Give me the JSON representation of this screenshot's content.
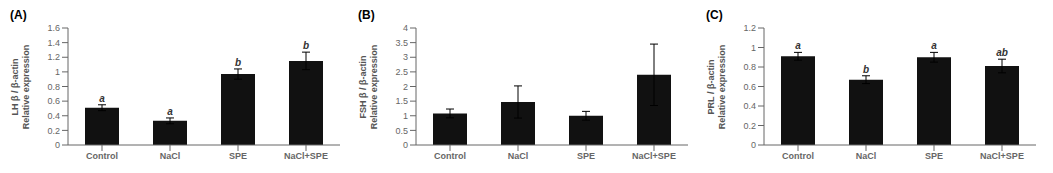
{
  "chart_data": [
    {
      "type": "bar",
      "title": "(A)",
      "ylabel": "LH β / β-actin\nRelative expression",
      "categories": [
        "Control",
        "NaCl",
        "SPE",
        "NaCl+SPE"
      ],
      "values": [
        0.51,
        0.33,
        0.97,
        1.15
      ],
      "errors": [
        0.04,
        0.04,
        0.07,
        0.12
      ],
      "annotations": [
        "a",
        "a",
        "b",
        "b"
      ],
      "ylim": [
        0,
        1.6
      ],
      "yticks": [
        0,
        0.2,
        0.4,
        0.6,
        0.8,
        1,
        1.2,
        1.4,
        1.6
      ],
      "color": "#111111",
      "grid": false
    },
    {
      "type": "bar",
      "title": "(B)",
      "ylabel": "FSH β / β-actin\nRelative expression",
      "categories": [
        "Control",
        "NaCl",
        "SPE",
        "NaCl+SPE"
      ],
      "values": [
        1.08,
        1.47,
        1.0,
        2.4
      ],
      "errors": [
        0.15,
        0.55,
        0.15,
        1.05
      ],
      "ylim": [
        0,
        4
      ],
      "yticks": [
        0,
        0.5,
        1,
        1.5,
        2,
        2.5,
        3,
        3.5,
        4
      ],
      "color": "#111111",
      "grid": false
    },
    {
      "type": "bar",
      "title": "(C)",
      "ylabel": "PRL / β-actin\nRelative expression",
      "categories": [
        "Control",
        "NaCl",
        "SPE",
        "NaCl+SPE"
      ],
      "values": [
        0.91,
        0.67,
        0.9,
        0.81
      ],
      "errors": [
        0.04,
        0.04,
        0.05,
        0.07
      ],
      "annotations": [
        "a",
        "b",
        "a",
        "ab"
      ],
      "ylim": [
        0,
        1.2
      ],
      "yticks": [
        0,
        0.2,
        0.4,
        0.6,
        0.8,
        1,
        1.2
      ],
      "color": "#111111",
      "grid": false
    }
  ]
}
